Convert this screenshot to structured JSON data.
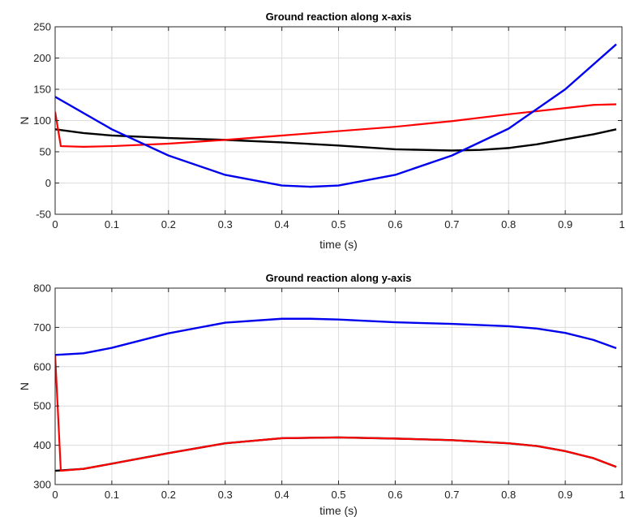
{
  "chart_data": [
    {
      "type": "line",
      "title": "Ground reaction along x-axis",
      "xlabel": "time (s)",
      "ylabel": "N",
      "xlim": [
        0,
        1
      ],
      "ylim": [
        -50,
        250
      ],
      "xticks": [
        0,
        0.1,
        0.2,
        0.3,
        0.4,
        0.5,
        0.6,
        0.7,
        0.8,
        0.9,
        1
      ],
      "xtick_labels": [
        "0",
        "0.1",
        "0.2",
        "0.3",
        "0.4",
        "0.5",
        "0.6",
        "0.7",
        "0.8",
        "0.9",
        "1"
      ],
      "yticks": [
        -50,
        0,
        50,
        100,
        150,
        200,
        250
      ],
      "ytick_labels": [
        "-50",
        "0",
        "50",
        "100",
        "150",
        "200",
        "250"
      ],
      "grid": true,
      "series": [
        {
          "color": "#000000",
          "x": [
            0,
            0.05,
            0.1,
            0.2,
            0.3,
            0.4,
            0.5,
            0.6,
            0.7,
            0.75,
            0.8,
            0.85,
            0.9,
            0.95,
            0.99
          ],
          "y": [
            86,
            80,
            76,
            72,
            69,
            65,
            60,
            54,
            52,
            53,
            56,
            62,
            70,
            78,
            86
          ]
        },
        {
          "color": "#ff0000",
          "x": [
            0,
            0.01,
            0.05,
            0.1,
            0.2,
            0.3,
            0.4,
            0.5,
            0.6,
            0.7,
            0.8,
            0.9,
            0.95,
            0.99
          ],
          "y": [
            114,
            59,
            58,
            59,
            63,
            69,
            76,
            83,
            90,
            99,
            110,
            120,
            125,
            126
          ]
        },
        {
          "color": "#0000ee",
          "x": [
            0,
            0.1,
            0.2,
            0.3,
            0.4,
            0.45,
            0.5,
            0.6,
            0.7,
            0.8,
            0.9,
            0.99
          ],
          "y": [
            138,
            86,
            44,
            13,
            -4,
            -6,
            -4,
            13,
            44,
            87,
            150,
            222
          ]
        }
      ]
    },
    {
      "type": "line",
      "title": "Ground reaction along y-axis",
      "xlabel": "time (s)",
      "ylabel": "N",
      "xlim": [
        0,
        1
      ],
      "ylim": [
        300,
        800
      ],
      "xticks": [
        0,
        0.1,
        0.2,
        0.3,
        0.4,
        0.5,
        0.6,
        0.7,
        0.8,
        0.9,
        1
      ],
      "xtick_labels": [
        "0",
        "0.1",
        "0.2",
        "0.3",
        "0.4",
        "0.5",
        "0.6",
        "0.7",
        "0.8",
        "0.9",
        "1"
      ],
      "yticks": [
        300,
        400,
        500,
        600,
        700,
        800
      ],
      "ytick_labels": [
        "300",
        "400",
        "500",
        "600",
        "700",
        "800"
      ],
      "grid": true,
      "series": [
        {
          "color": "#000000",
          "x": [
            0,
            0.05,
            0.1,
            0.2,
            0.3,
            0.4,
            0.5,
            0.6,
            0.7,
            0.8,
            0.85,
            0.9,
            0.95,
            0.99
          ],
          "y": [
            335,
            340,
            353,
            380,
            405,
            418,
            420,
            417,
            413,
            405,
            398,
            385,
            367,
            345
          ]
        },
        {
          "color": "#ff0000",
          "x": [
            0,
            0.01,
            0.05,
            0.1,
            0.2,
            0.3,
            0.4,
            0.5,
            0.6,
            0.7,
            0.8,
            0.85,
            0.9,
            0.95,
            0.99
          ],
          "y": [
            630,
            335,
            340,
            353,
            380,
            405,
            418,
            420,
            417,
            413,
            405,
            398,
            385,
            367,
            345
          ]
        },
        {
          "color": "#0000ee",
          "x": [
            0,
            0.05,
            0.1,
            0.2,
            0.3,
            0.4,
            0.45,
            0.5,
            0.6,
            0.7,
            0.8,
            0.85,
            0.9,
            0.95,
            0.99
          ],
          "y": [
            630,
            634,
            648,
            685,
            712,
            722,
            722,
            720,
            713,
            709,
            703,
            697,
            686,
            668,
            647
          ]
        }
      ]
    }
  ]
}
